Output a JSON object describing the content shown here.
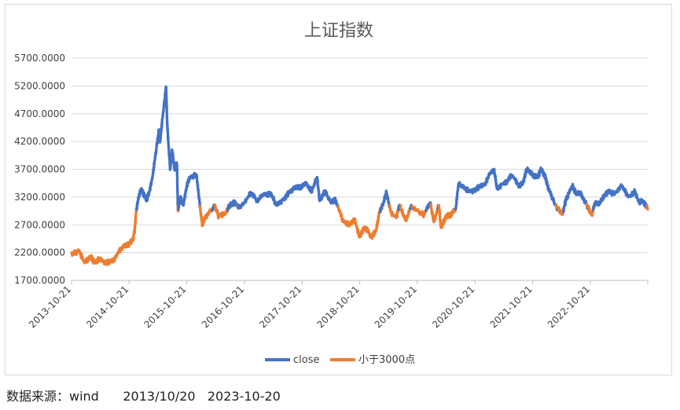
{
  "chart_data": {
    "type": "line",
    "title": "上证指数",
    "ylim": [
      1700,
      5700
    ],
    "y_ticks": [
      "1700.0000",
      "2200.0000",
      "2700.0000",
      "3200.0000",
      "3700.0000",
      "4200.0000",
      "4700.0000",
      "5200.0000",
      "5700.0000"
    ],
    "x_ticks": [
      "2013-10-21",
      "2014-10-21",
      "2015-10-21",
      "2016-10-21",
      "2017-10-21",
      "2018-10-21",
      "2019-10-21",
      "2020-10-21",
      "2021-10-21",
      "2022-10-21"
    ],
    "x_range": [
      "2013-10-21",
      "2023-10-20"
    ],
    "grid": "horizontal",
    "legend_position": "bottom",
    "threshold": 3000,
    "series": [
      {
        "name": "close",
        "color": "#4472C4"
      },
      {
        "name": "小于3000点",
        "color": "#ED7D31"
      }
    ],
    "points": [
      [
        "2013-10-21",
        2190
      ],
      [
        "2013-11-20",
        2200
      ],
      [
        "2013-12-05",
        2250
      ],
      [
        "2014-01-10",
        2030
      ],
      [
        "2014-02-20",
        2120
      ],
      [
        "2014-03-15",
        2030
      ],
      [
        "2014-04-15",
        2080
      ],
      [
        "2014-05-20",
        2020
      ],
      [
        "2014-06-20",
        2040
      ],
      [
        "2014-07-15",
        2060
      ],
      [
        "2014-08-10",
        2200
      ],
      [
        "2014-09-10",
        2300
      ],
      [
        "2014-10-21",
        2350
      ],
      [
        "2014-11-15",
        2450
      ],
      [
        "2014-11-25",
        2600
      ],
      [
        "2014-12-05",
        2950
      ],
      [
        "2014-12-20",
        3200
      ],
      [
        "2015-01-05",
        3350
      ],
      [
        "2015-01-20",
        3250
      ],
      [
        "2015-02-10",
        3150
      ],
      [
        "2015-02-27",
        3300
      ],
      [
        "2015-03-20",
        3600
      ],
      [
        "2015-04-08",
        4000
      ],
      [
        "2015-04-27",
        4400
      ],
      [
        "2015-05-05",
        4200
      ],
      [
        "2015-05-20",
        4600
      ],
      [
        "2015-06-05",
        5000
      ],
      [
        "2015-06-12",
        5170
      ],
      [
        "2015-06-19",
        4500
      ],
      [
        "2015-06-26",
        4200
      ],
      [
        "2015-07-08",
        3700
      ],
      [
        "2015-07-20",
        4050
      ],
      [
        "2015-08-05",
        3700
      ],
      [
        "2015-08-20",
        3800
      ],
      [
        "2015-08-26",
        2950
      ],
      [
        "2015-09-10",
        3200
      ],
      [
        "2015-09-30",
        3050
      ],
      [
        "2015-10-21",
        3400
      ],
      [
        "2015-11-10",
        3550
      ],
      [
        "2015-12-22",
        3600
      ],
      [
        "2016-01-10",
        3100
      ],
      [
        "2016-01-28",
        2700
      ],
      [
        "2016-02-20",
        2850
      ],
      [
        "2016-03-20",
        2950
      ],
      [
        "2016-04-15",
        3050
      ],
      [
        "2016-05-10",
        2850
      ],
      [
        "2016-06-20",
        2900
      ],
      [
        "2016-07-20",
        3050
      ],
      [
        "2016-08-20",
        3100
      ],
      [
        "2016-09-20",
        3000
      ],
      [
        "2016-10-21",
        3100
      ],
      [
        "2016-11-29",
        3280
      ],
      [
        "2017-01-10",
        3130
      ],
      [
        "2017-02-20",
        3250
      ],
      [
        "2017-04-10",
        3250
      ],
      [
        "2017-05-10",
        3050
      ],
      [
        "2017-06-20",
        3150
      ],
      [
        "2017-08-01",
        3280
      ],
      [
        "2017-09-10",
        3380
      ],
      [
        "2017-10-21",
        3380
      ],
      [
        "2017-11-14",
        3450
      ],
      [
        "2017-12-20",
        3300
      ],
      [
        "2018-01-24",
        3560
      ],
      [
        "2018-02-09",
        3130
      ],
      [
        "2018-03-15",
        3300
      ],
      [
        "2018-04-20",
        3100
      ],
      [
        "2018-05-20",
        3150
      ],
      [
        "2018-06-20",
        2900
      ],
      [
        "2018-07-10",
        2750
      ],
      [
        "2018-08-20",
        2700
      ],
      [
        "2018-09-20",
        2800
      ],
      [
        "2018-10-19",
        2480
      ],
      [
        "2018-11-20",
        2650
      ],
      [
        "2018-12-10",
        2600
      ],
      [
        "2019-01-03",
        2470
      ],
      [
        "2019-02-01",
        2600
      ],
      [
        "2019-02-25",
        2950
      ],
      [
        "2019-03-20",
        3100
      ],
      [
        "2019-04-08",
        3280
      ],
      [
        "2019-05-10",
        2900
      ],
      [
        "2019-06-10",
        2850
      ],
      [
        "2019-07-01",
        3050
      ],
      [
        "2019-08-10",
        2780
      ],
      [
        "2019-09-10",
        3030
      ],
      [
        "2019-10-21",
        2950
      ],
      [
        "2019-12-02",
        2880
      ],
      [
        "2020-01-10",
        3100
      ],
      [
        "2020-02-03",
        2750
      ],
      [
        "2020-03-05",
        3050
      ],
      [
        "2020-03-19",
        2650
      ],
      [
        "2020-04-20",
        2850
      ],
      [
        "2020-05-20",
        2880
      ],
      [
        "2020-06-20",
        2980
      ],
      [
        "2020-07-09",
        3450
      ],
      [
        "2020-08-20",
        3350
      ],
      [
        "2020-09-20",
        3300
      ],
      [
        "2020-10-21",
        3320
      ],
      [
        "2020-11-20",
        3400
      ],
      [
        "2020-12-20",
        3420
      ],
      [
        "2021-01-20",
        3600
      ],
      [
        "2021-02-18",
        3700
      ],
      [
        "2021-03-09",
        3350
      ],
      [
        "2021-04-20",
        3450
      ],
      [
        "2021-05-20",
        3500
      ],
      [
        "2021-06-10",
        3600
      ],
      [
        "2021-07-28",
        3400
      ],
      [
        "2021-08-20",
        3450
      ],
      [
        "2021-09-13",
        3700
      ],
      [
        "2021-10-21",
        3600
      ],
      [
        "2021-11-20",
        3550
      ],
      [
        "2021-12-13",
        3700
      ],
      [
        "2022-01-10",
        3550
      ],
      [
        "2022-01-28",
        3350
      ],
      [
        "2022-03-15",
        3050
      ],
      [
        "2022-04-26",
        2880
      ],
      [
        "2022-05-20",
        3150
      ],
      [
        "2022-06-30",
        3400
      ],
      [
        "2022-07-20",
        3280
      ],
      [
        "2022-08-20",
        3270
      ],
      [
        "2022-09-20",
        3100
      ],
      [
        "2022-10-31",
        2880
      ],
      [
        "2022-11-20",
        3100
      ],
      [
        "2022-12-20",
        3080
      ],
      [
        "2023-01-20",
        3250
      ],
      [
        "2023-02-20",
        3300
      ],
      [
        "2023-03-20",
        3250
      ],
      [
        "2023-05-08",
        3400
      ],
      [
        "2023-06-20",
        3200
      ],
      [
        "2023-07-31",
        3300
      ],
      [
        "2023-08-25",
        3100
      ],
      [
        "2023-09-20",
        3130
      ],
      [
        "2023-10-20",
        2980
      ]
    ]
  },
  "caption": {
    "source_label": "数据来源：wind",
    "start_date": "2013/10/20",
    "end_date": "2023-10-20"
  }
}
